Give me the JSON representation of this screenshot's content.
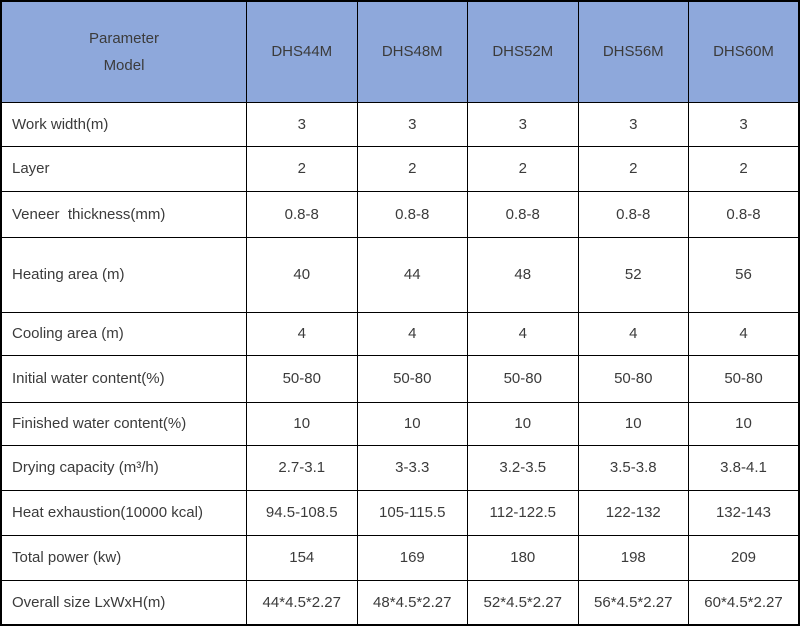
{
  "table": {
    "corner": {
      "line1": "Parameter",
      "line2": "Model"
    },
    "models": [
      "DHS44M",
      "DHS48M",
      "DHS52M",
      "DHS56M",
      "DHS60M"
    ],
    "rows": [
      {
        "label": "Work width(m)",
        "values": [
          "3",
          "3",
          "3",
          "3",
          "3"
        ]
      },
      {
        "label": "Layer",
        "values": [
          "2",
          "2",
          "2",
          "2",
          "2"
        ]
      },
      {
        "label": "Veneer  thickness(mm)",
        "values": [
          "0.8-8",
          "0.8-8",
          "0.8-8",
          "0.8-8",
          "0.8-8"
        ]
      },
      {
        "label": "Heating area (m)",
        "values": [
          "40",
          "44",
          "48",
          "52",
          "56"
        ]
      },
      {
        "label": "Cooling area (m)",
        "values": [
          "4",
          "4",
          "4",
          "4",
          "4"
        ]
      },
      {
        "label": "Initial water content(%)",
        "values": [
          "50-80",
          "50-80",
          "50-80",
          "50-80",
          "50-80"
        ]
      },
      {
        "label": "Finished water content(%)",
        "values": [
          "10",
          "10",
          "10",
          "10",
          "10"
        ]
      },
      {
        "label": "Drying capacity (m³/h)",
        "values": [
          "2.7-3.1",
          "3-3.3",
          "3.2-3.5",
          "3.5-3.8",
          "3.8-4.1"
        ]
      },
      {
        "label": "Heat exhaustion(10000 kcal)",
        "values": [
          "94.5-108.5",
          "105-115.5",
          "112-122.5",
          "122-132",
          "132-143"
        ]
      },
      {
        "label": "Total power (kw)",
        "values": [
          "154",
          "169",
          "180",
          "198",
          "209"
        ]
      },
      {
        "label": "Overall size LxWxH(m)",
        "values": [
          "44*4.5*2.27",
          "48*4.5*2.27",
          "52*4.5*2.27",
          "56*4.5*2.27",
          "60*4.5*2.27"
        ]
      }
    ],
    "colors": {
      "header_bg": "#8EA8DB",
      "border": "#000000",
      "text": "#3b3b3b",
      "cell_bg": "#ffffff"
    }
  }
}
